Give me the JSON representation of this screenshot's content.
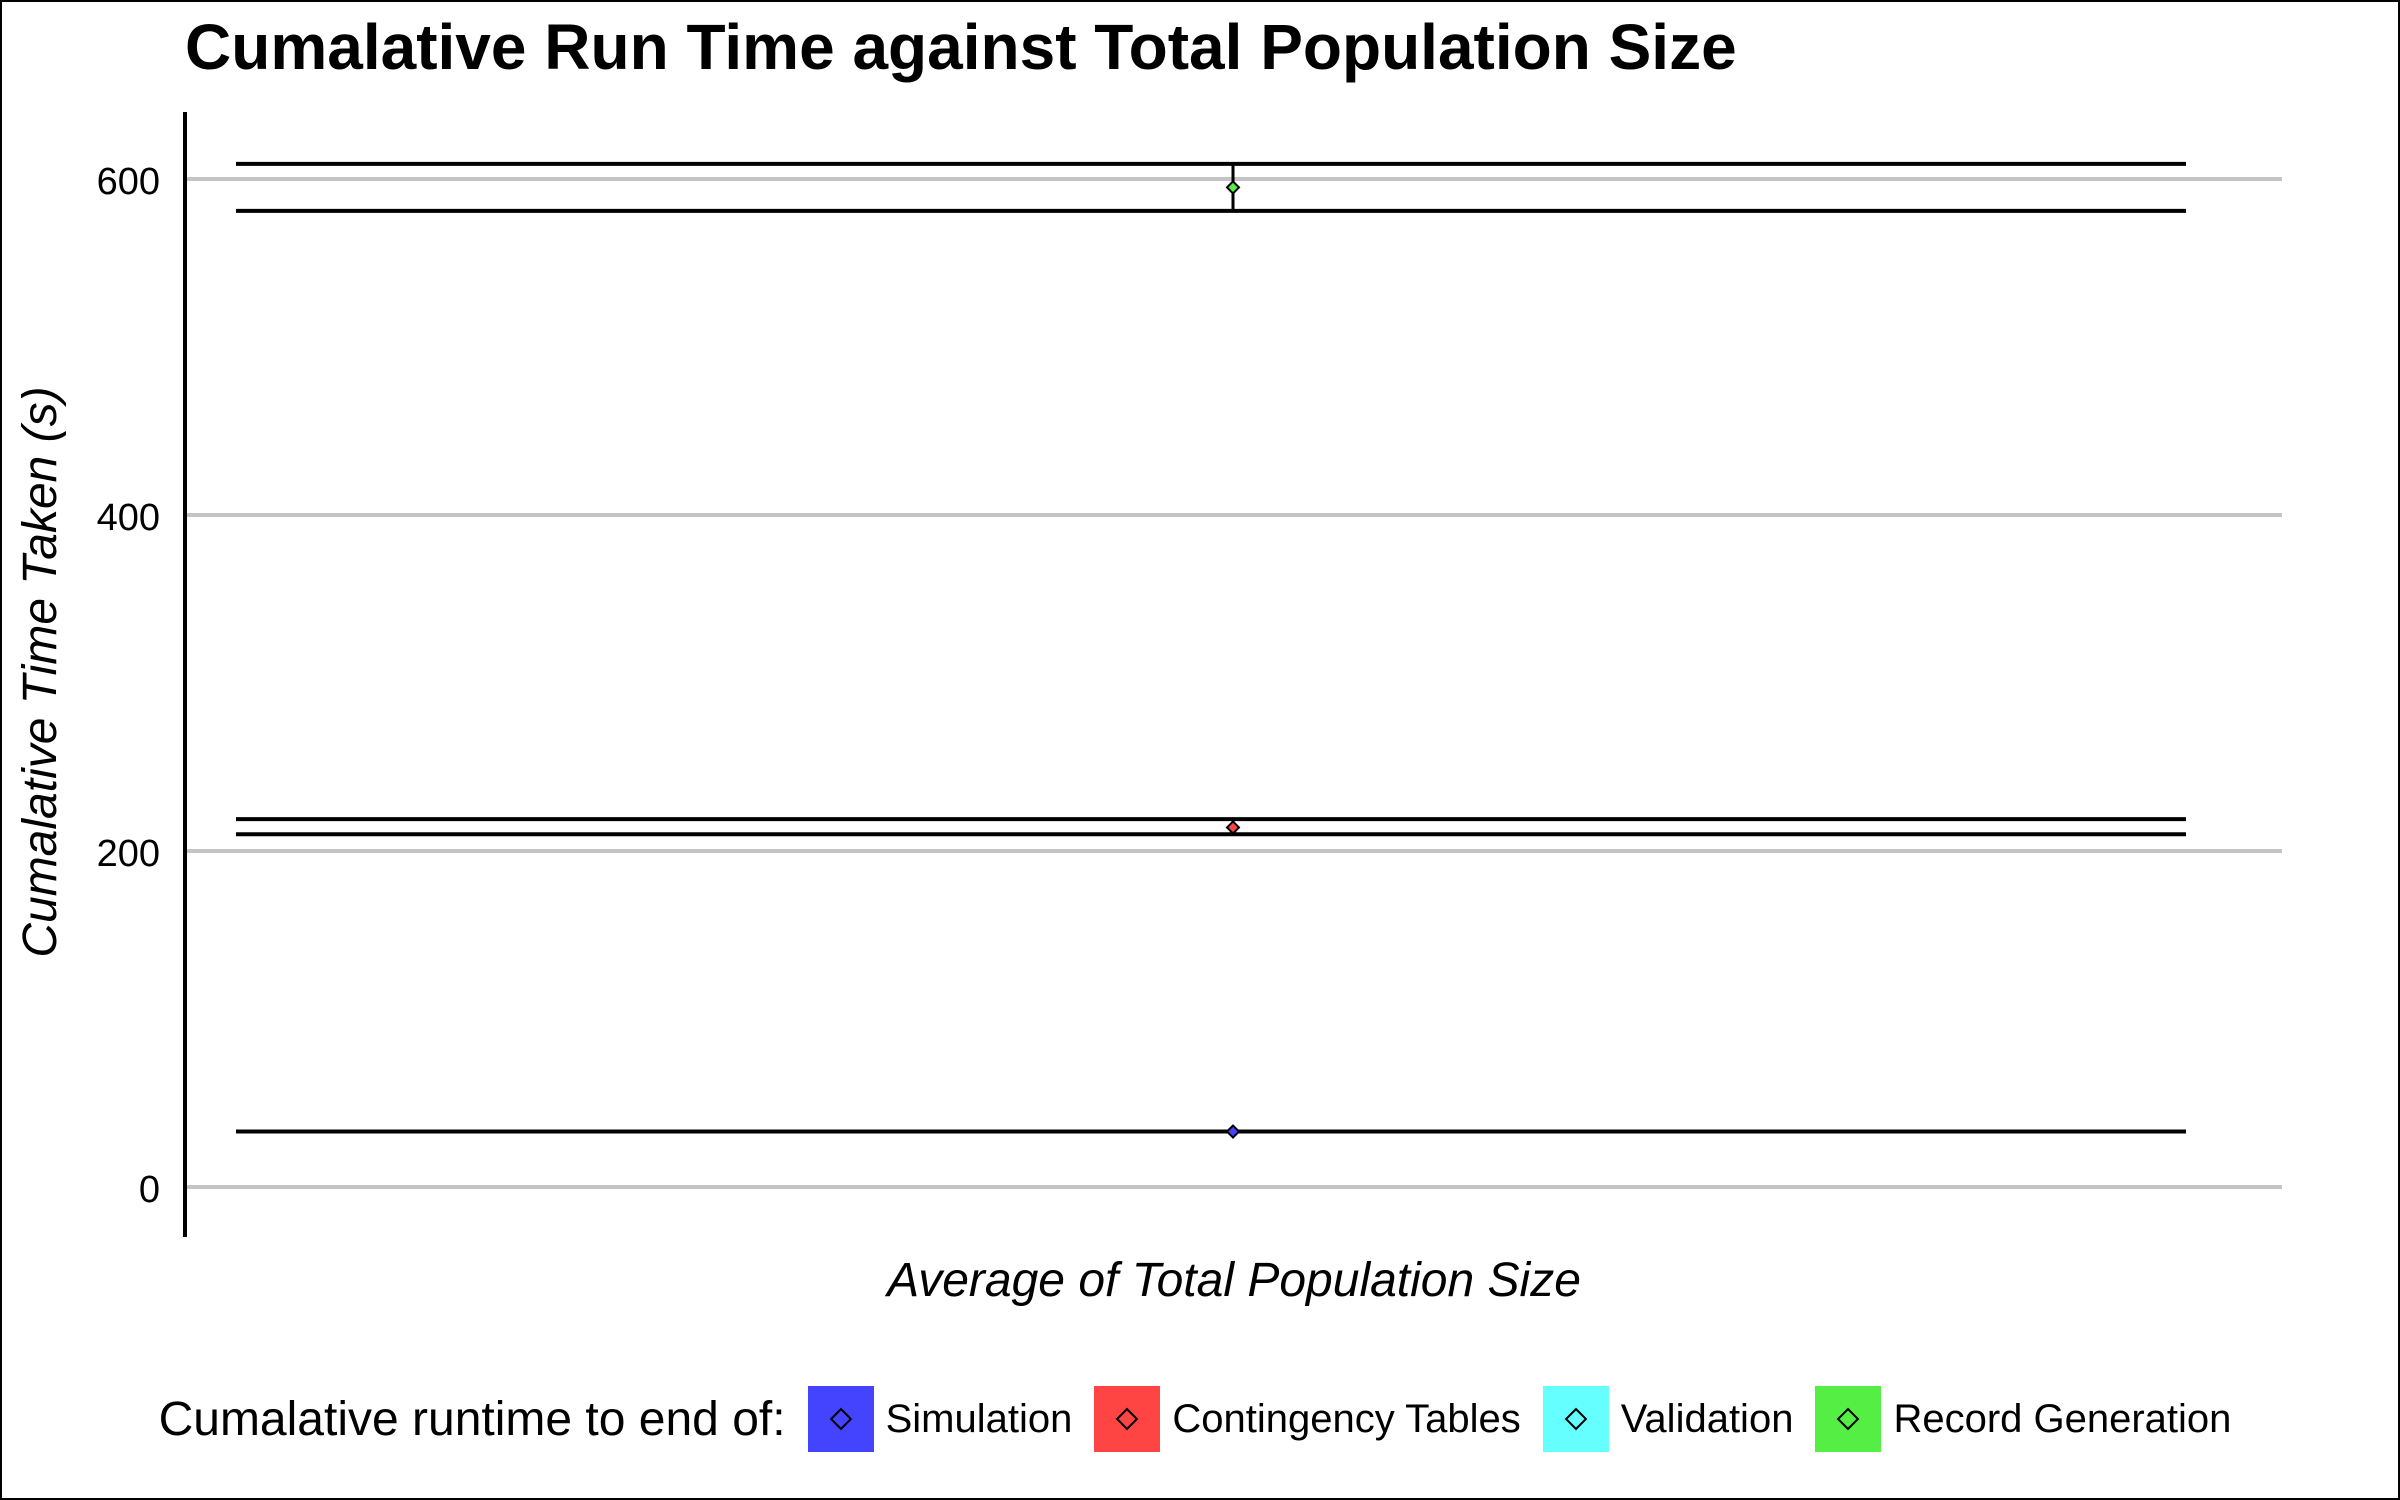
{
  "chart_data": {
    "type": "scatter",
    "title": "Cumalative Run Time against Total Population Size",
    "xlabel": "Average of Total Population Size",
    "ylabel": "Cumalative Time Taken (s)",
    "ylim": [
      0,
      600
    ],
    "yticks": [
      0,
      200,
      400,
      600
    ],
    "grid": "horizontal",
    "legend": {
      "title": "Cumalative runtime to end of:",
      "position": "bottom"
    },
    "series": [
      {
        "name": "Simulation",
        "color": "#4444ff",
        "y": 33,
        "ymin": 33,
        "ymax": 33
      },
      {
        "name": "Contingency Tables",
        "color": "#ff4444",
        "y": 214,
        "ymin": 210,
        "ymax": 219
      },
      {
        "name": "Validation",
        "color": "#66ffff",
        "y": null,
        "ymin": null,
        "ymax": null
      },
      {
        "name": "Record Generation",
        "color": "#55ee44",
        "y": 595,
        "ymin": 581,
        "ymax": 609
      }
    ]
  }
}
